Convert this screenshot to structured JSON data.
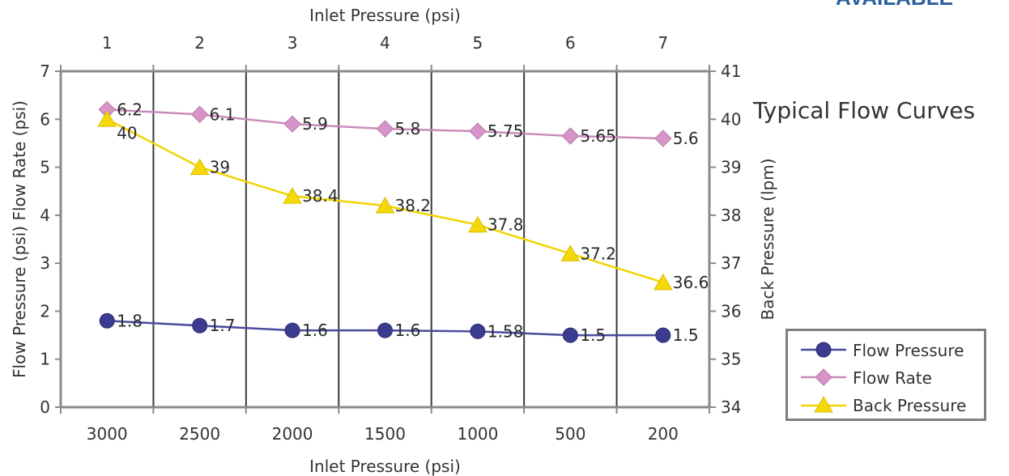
{
  "corner_tag": "AVAILABLE",
  "side_title": "Typical Flow Curves",
  "chart_data": {
    "type": "line",
    "title": "Typical Flow Curves",
    "top_axis": {
      "label": "Inlet Pressure (psi)",
      "ticks": [
        "1",
        "2",
        "3",
        "4",
        "5",
        "6",
        "7"
      ]
    },
    "x_axis": {
      "label": "Inlet Pressure (psi)",
      "categories": [
        "3000",
        "2500",
        "2000",
        "1500",
        "1000",
        "500",
        "200"
      ]
    },
    "y_left": {
      "label": "Flow Pressure (psi) Flow Rate (psi)",
      "range": [
        0,
        7
      ],
      "ticks": [
        0,
        1,
        2,
        3,
        4,
        5,
        6,
        7
      ]
    },
    "y_right": {
      "label": "Back Pressure (lpm)",
      "range": [
        34,
        41
      ],
      "ticks": [
        34,
        35,
        36,
        37,
        38,
        39,
        40,
        41
      ]
    },
    "grid": "vertical",
    "legend_position": "right",
    "series": [
      {
        "name": "Flow Pressure",
        "axis": "left",
        "marker": "circle",
        "color": "#3b3b8f",
        "line_color": "#4a4a9e",
        "values": [
          1.8,
          1.7,
          1.6,
          1.6,
          1.58,
          1.5,
          1.5
        ],
        "labels": [
          "1.8",
          "1.7",
          "1.6",
          "1.6",
          "1.58",
          "1.5",
          "1.5"
        ]
      },
      {
        "name": "Flow Rate",
        "axis": "left",
        "marker": "diamond",
        "color": "#d694c8",
        "line_color": "#c98bbd",
        "values": [
          6.2,
          6.1,
          5.9,
          5.8,
          5.75,
          5.65,
          5.6
        ],
        "labels": [
          "6.2",
          "6.1",
          "5.9",
          "5.8",
          "5.75",
          "5.65",
          "5.6"
        ]
      },
      {
        "name": "Back Pressure",
        "axis": "right",
        "marker": "triangle",
        "color": "#f5d80a",
        "line_color": "#f2d400",
        "values": [
          40,
          39,
          38.4,
          38.2,
          37.8,
          37.2,
          36.6
        ],
        "labels": [
          "40",
          "39",
          "38.4",
          "38.2",
          "37.8",
          "37.2",
          "36.6"
        ]
      }
    ]
  }
}
